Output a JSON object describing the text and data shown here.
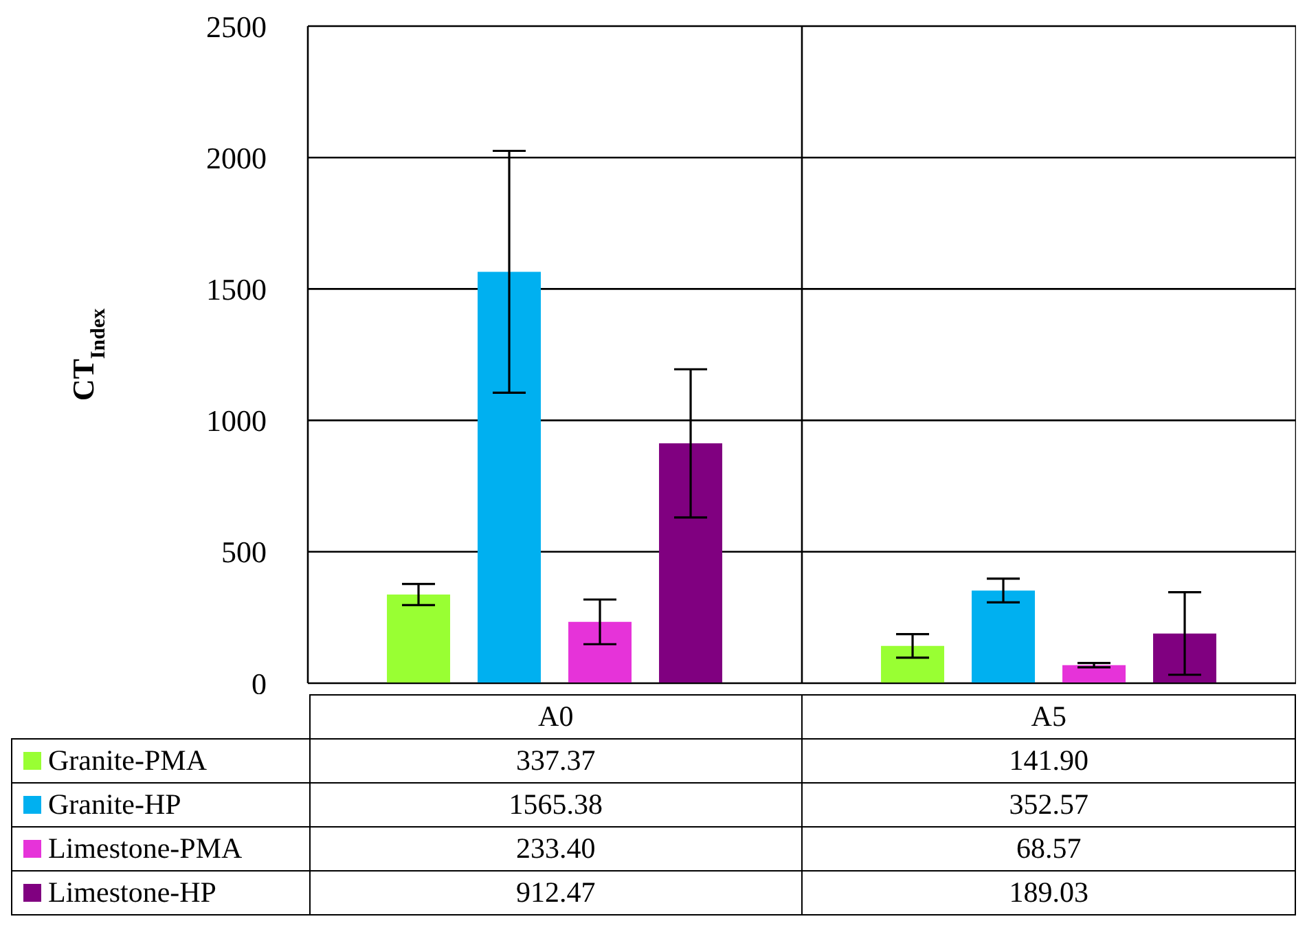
{
  "chart_data": {
    "type": "bar",
    "ylabel": "CT$_{Index}$",
    "categories": [
      "A0",
      "A5"
    ],
    "series": [
      {
        "name": "Granite-PMA",
        "color": "#99ff33",
        "values": [
          337.37,
          141.9
        ],
        "value_labels": [
          "337.37",
          "141.90"
        ],
        "errors": [
          40,
          45
        ]
      },
      {
        "name": "Granite-HP",
        "color": "#00b0f0",
        "values": [
          1565.38,
          352.57
        ],
        "value_labels": [
          "1565.38",
          "352.57"
        ],
        "errors": [
          460,
          45
        ]
      },
      {
        "name": "Limestone-PMA",
        "color": "#e633d9",
        "values": [
          233.4,
          68.57
        ],
        "value_labels": [
          "233.40",
          "68.57"
        ],
        "errors": [
          85,
          8
        ]
      },
      {
        "name": "Limestone-HP",
        "color": "#800080",
        "values": [
          912.47,
          189.03
        ],
        "value_labels": [
          "912.47",
          "189.03"
        ],
        "errors": [
          282,
          157
        ]
      }
    ],
    "ylim": [
      0,
      2500
    ],
    "yticks": [
      0,
      500,
      1000,
      1500,
      2000,
      2500
    ],
    "grid": true,
    "legend": "bottom"
  }
}
